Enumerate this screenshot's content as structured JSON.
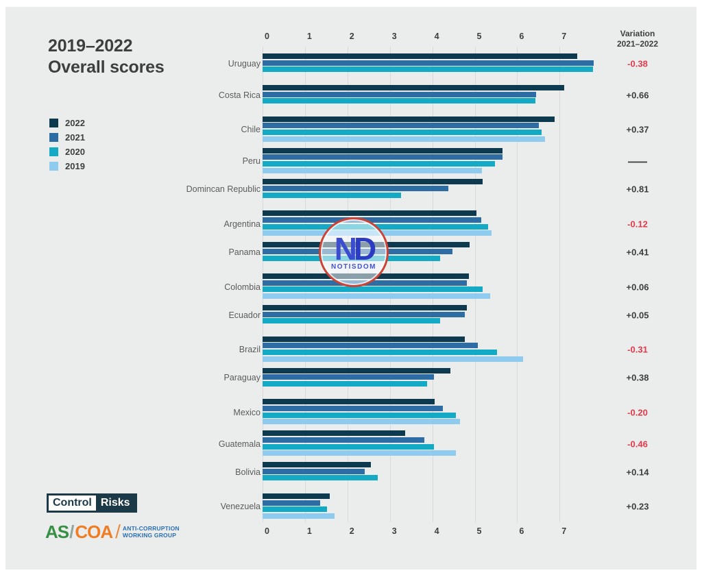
{
  "title": {
    "line1": "2019–2022",
    "line2": "Overall scores"
  },
  "legend": [
    {
      "label": "2022",
      "color": "#0d3a4e"
    },
    {
      "label": "2021",
      "color": "#2e6da4"
    },
    {
      "label": "2020",
      "color": "#14a9c4"
    },
    {
      "label": "2019",
      "color": "#8ecbee"
    }
  ],
  "variation_header": {
    "line1": "Variation",
    "line2": "2021–2022"
  },
  "watermark": {
    "letter_n": "N",
    "letter_d": "D",
    "name": "NOTISDOM"
  },
  "logos": {
    "control_risks": {
      "part1": "Control",
      "part2": "Risks"
    },
    "ascoa": {
      "as": "AS",
      "slash1": "/",
      "coa": "COA",
      "slash2": "/",
      "line1": "ANTI-CORRUPTION",
      "line2": "WORKING GROUP"
    }
  },
  "colors": {
    "panel_background": "#ebecec",
    "gridline": "#d8d9da",
    "dark_text": "#3d3d3d",
    "country_label": "#5b5b5b",
    "negative_variation": "#e23a4c",
    "watermark_ring": "#cb4335"
  },
  "chart_data": {
    "type": "bar",
    "orientation": "horizontal",
    "title": "2019–2022 Overall scores",
    "grid": true,
    "xlim": [
      0,
      7
    ],
    "ticks": [
      "0",
      "1",
      "2",
      "3",
      "4",
      "5",
      "6",
      "7"
    ],
    "axis_position": "top and bottom",
    "legend_position": "left",
    "categories": [
      "Uruguay",
      "Costa Rica",
      "Chile",
      "Peru",
      "Domincan Republic",
      "Argentina",
      "Panama",
      "Colombia",
      "Ecuador",
      "Brazil",
      "Paraguay",
      "Mexico",
      "Guatemala",
      "Bolivia",
      "Venezuela"
    ],
    "series": [
      {
        "name": "2022",
        "color": "#0d3a4e",
        "values": [
          7.42,
          7.11,
          6.88,
          5.66,
          5.19,
          5.04,
          4.88,
          4.87,
          4.82,
          4.76,
          4.42,
          4.05,
          3.36,
          2.55,
          1.58
        ]
      },
      {
        "name": "2021",
        "color": "#2e6da4",
        "values": [
          7.8,
          6.45,
          6.51,
          5.66,
          4.38,
          5.16,
          4.47,
          4.81,
          4.77,
          5.07,
          4.04,
          4.25,
          3.82,
          2.41,
          1.35
        ]
      },
      {
        "name": "2020",
        "color": "#14a9c4",
        "values": [
          7.78,
          6.43,
          6.57,
          5.47,
          3.26,
          5.32,
          4.18,
          5.18,
          4.19,
          5.52,
          3.88,
          4.55,
          4.04,
          2.71,
          1.52
        ]
      },
      {
        "name": "2019",
        "color": "#8ecbee",
        "values": [
          null,
          null,
          6.66,
          5.17,
          null,
          5.39,
          null,
          5.36,
          null,
          6.14,
          null,
          4.65,
          4.55,
          null,
          1.7
        ]
      }
    ],
    "variations": [
      "-0.38",
      "+0.66",
      "+0.37",
      "—",
      "+0.81",
      "-0.12",
      "+0.41",
      "+0.06",
      "+0.05",
      "-0.31",
      "+0.38",
      "-0.20",
      "-0.46",
      "+0.14",
      "+0.23"
    ]
  }
}
